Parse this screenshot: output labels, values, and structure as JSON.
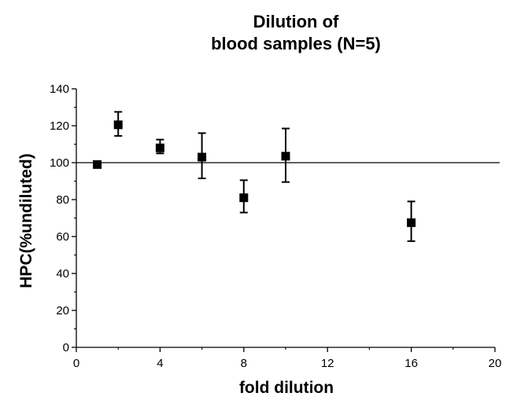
{
  "chart_data": {
    "type": "scatter",
    "title_lines": [
      "Dilution of",
      "blood samples (N=5)"
    ],
    "xlabel": "fold dilution",
    "ylabel": "HPC(%undiluted)",
    "xlim": [
      0,
      20
    ],
    "ylim": [
      0,
      140
    ],
    "x_ticks": [
      "0",
      "4",
      "8",
      "12",
      "16",
      "20"
    ],
    "y_ticks": [
      "0",
      "20",
      "40",
      "60",
      "80",
      "100",
      "120",
      "140"
    ],
    "reference_line_y": 100,
    "grid": false,
    "points": [
      {
        "x": 1,
        "y": 99,
        "err_low": 99,
        "err_high": 99
      },
      {
        "x": 2,
        "y": 120.5,
        "err_low": 114.5,
        "err_high": 127.5
      },
      {
        "x": 4,
        "y": 108,
        "err_low": 105,
        "err_high": 112.5
      },
      {
        "x": 6,
        "y": 103,
        "err_low": 91.5,
        "err_high": 116
      },
      {
        "x": 8,
        "y": 81,
        "err_low": 73,
        "err_high": 90.5
      },
      {
        "x": 10,
        "y": 103.5,
        "err_low": 89.5,
        "err_high": 118.5
      },
      {
        "x": 16,
        "y": 67.5,
        "err_low": 57.5,
        "err_high": 79
      }
    ]
  }
}
